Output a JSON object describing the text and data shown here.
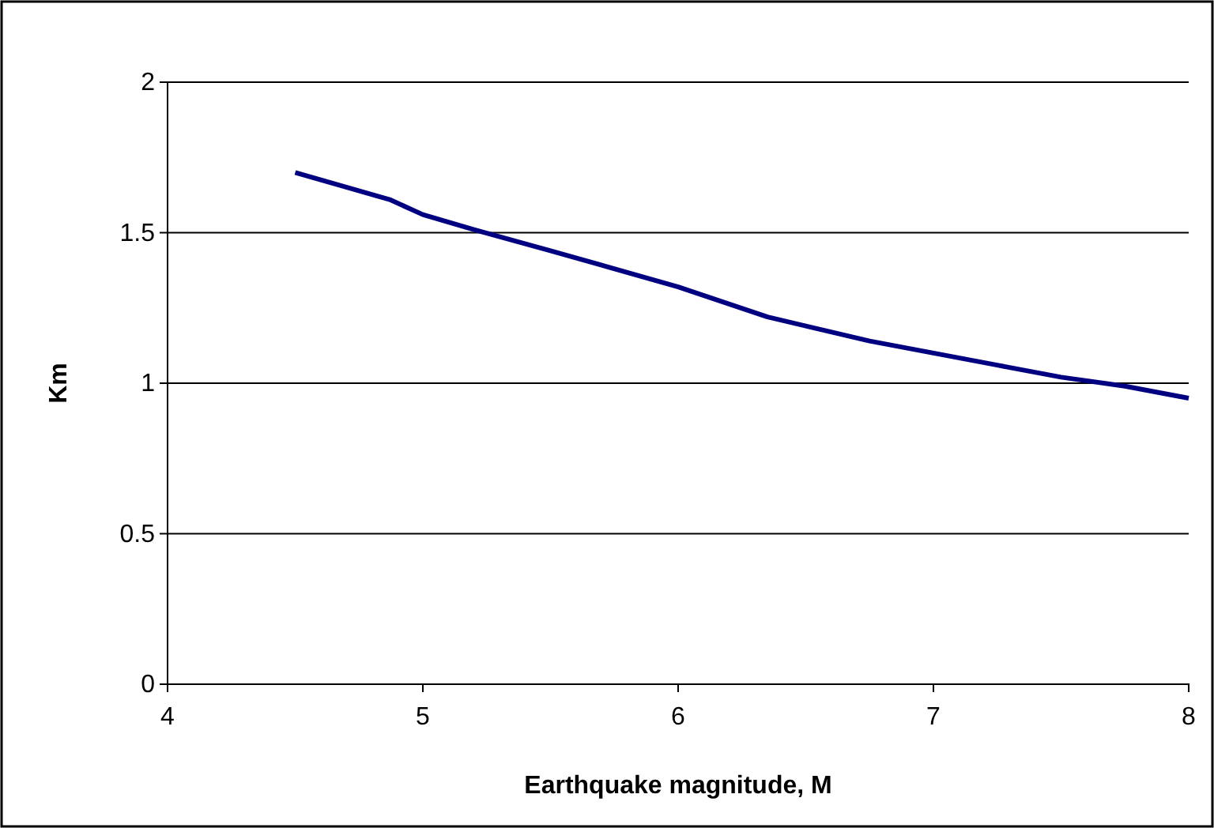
{
  "chart_data": {
    "type": "line",
    "xlabel": "Earthquake magnitude, M",
    "ylabel": "Km",
    "x": [
      4.5,
      4.87,
      5.0,
      5.2,
      5.5,
      6.0,
      6.35,
      6.5,
      6.75,
      7.0,
      7.25,
      7.5,
      7.75,
      8.0
    ],
    "series": [
      {
        "color": "#000080",
        "values": [
          1.7,
          1.61,
          1.56,
          1.51,
          1.44,
          1.32,
          1.22,
          1.19,
          1.14,
          1.1,
          1.06,
          1.02,
          0.99,
          0.95
        ]
      }
    ],
    "xlim": [
      4,
      8
    ],
    "xticks": [
      4,
      5,
      6,
      7,
      8
    ],
    "ylim": [
      0,
      2
    ],
    "yticks": [
      0,
      0.5,
      1,
      1.5,
      2
    ],
    "grid": "y",
    "marker": "none",
    "line_style": "solid"
  }
}
